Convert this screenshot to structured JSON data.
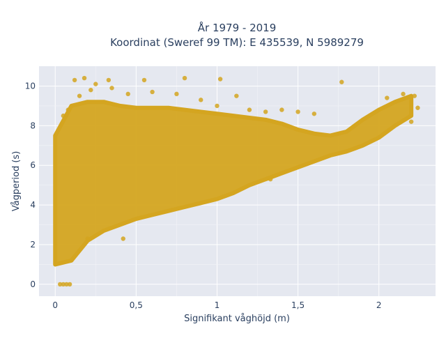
{
  "chart_data": {
    "type": "scatter",
    "title": "År 1979 - 2019",
    "subtitle": "Koordinat (Sweref 99 TM): E 435539, N 5989279",
    "xlabel": "Signifikant våghöjd (m)",
    "ylabel": "Vågperiod (s)",
    "xlim": [
      -0.1,
      2.35
    ],
    "ylim": [
      -0.6,
      11.0
    ],
    "x_ticks": [
      0,
      0.5,
      1,
      1.5,
      2
    ],
    "x_tick_labels": [
      "0",
      "0,5",
      "1",
      "1,5",
      "2"
    ],
    "y_ticks": [
      0,
      2,
      4,
      6,
      8,
      10
    ],
    "y_tick_labels": [
      "0",
      "2",
      "4",
      "6",
      "8",
      "10"
    ],
    "grid": true,
    "marker_color": "#D4A520",
    "background_color": "#E5E8F0",
    "envelope": {
      "x": [
        0.0,
        0.1,
        0.2,
        0.3,
        0.4,
        0.5,
        0.6,
        0.7,
        0.8,
        0.9,
        1.0,
        1.1,
        1.2,
        1.3,
        1.4,
        1.5,
        1.6,
        1.7,
        1.8,
        1.9,
        2.0,
        2.1,
        2.2
      ],
      "y_min": [
        1.0,
        1.2,
        2.2,
        2.7,
        3.0,
        3.3,
        3.5,
        3.7,
        3.9,
        4.1,
        4.3,
        4.6,
        5.0,
        5.3,
        5.6,
        5.9,
        6.2,
        6.5,
        6.7,
        7.0,
        7.4,
        8.0,
        8.5
      ],
      "y_max": [
        7.5,
        9.0,
        9.2,
        9.2,
        9.0,
        8.9,
        8.9,
        8.9,
        8.8,
        8.7,
        8.6,
        8.5,
        8.4,
        8.3,
        8.1,
        7.8,
        7.6,
        7.5,
        7.7,
        8.3,
        8.8,
        9.2,
        9.5
      ]
    },
    "points": [
      {
        "x": 0.12,
        "y": 10.3
      },
      {
        "x": 0.18,
        "y": 10.4
      },
      {
        "x": 0.25,
        "y": 10.1
      },
      {
        "x": 0.33,
        "y": 10.3
      },
      {
        "x": 0.55,
        "y": 10.3
      },
      {
        "x": 0.8,
        "y": 10.4
      },
      {
        "x": 1.02,
        "y": 10.35
      },
      {
        "x": 1.77,
        "y": 10.2
      },
      {
        "x": 2.05,
        "y": 9.4
      },
      {
        "x": 2.15,
        "y": 9.6
      },
      {
        "x": 2.22,
        "y": 9.5
      },
      {
        "x": 2.24,
        "y": 8.9
      },
      {
        "x": 2.2,
        "y": 8.2
      },
      {
        "x": 1.6,
        "y": 8.6
      },
      {
        "x": 1.5,
        "y": 8.7
      },
      {
        "x": 1.4,
        "y": 8.8
      },
      {
        "x": 1.3,
        "y": 8.7
      },
      {
        "x": 1.2,
        "y": 8.8
      },
      {
        "x": 1.12,
        "y": 9.5
      },
      {
        "x": 1.0,
        "y": 9.0
      },
      {
        "x": 0.9,
        "y": 9.3
      },
      {
        "x": 0.75,
        "y": 9.6
      },
      {
        "x": 0.6,
        "y": 9.7
      },
      {
        "x": 0.45,
        "y": 9.6
      },
      {
        "x": 0.35,
        "y": 9.9
      },
      {
        "x": 0.22,
        "y": 9.8
      },
      {
        "x": 0.15,
        "y": 9.5
      },
      {
        "x": 0.08,
        "y": 8.8
      },
      {
        "x": 0.05,
        "y": 8.5
      },
      {
        "x": 1.33,
        "y": 5.3
      },
      {
        "x": 0.2,
        "y": 2.3
      },
      {
        "x": 0.42,
        "y": 2.3
      },
      {
        "x": 0.03,
        "y": 0.0
      },
      {
        "x": 0.05,
        "y": 0.0
      },
      {
        "x": 0.07,
        "y": 0.0
      },
      {
        "x": 0.09,
        "y": 0.0
      }
    ]
  }
}
